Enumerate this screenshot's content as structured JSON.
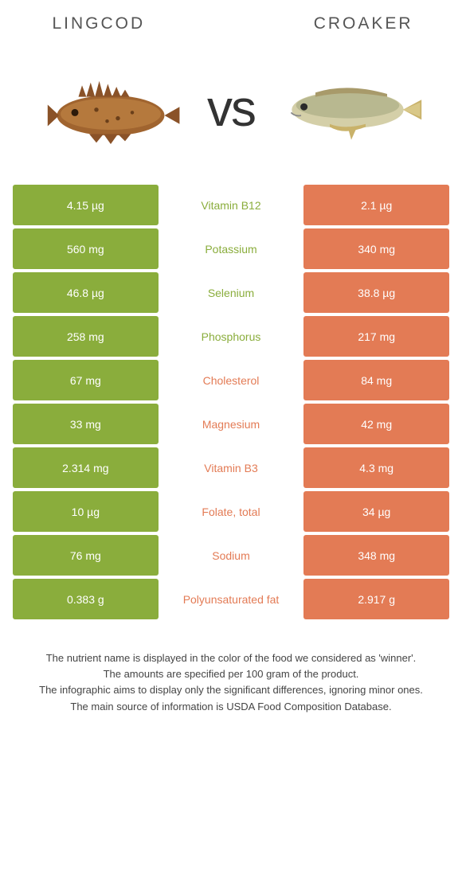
{
  "left_food": {
    "title": "LINGCOD"
  },
  "right_food": {
    "title": "CROAKER"
  },
  "vs_text": "vs",
  "colors": {
    "left": "#8aad3c",
    "right": "#e37b55",
    "left_text": "#8aad3c",
    "right_text": "#e37b55"
  },
  "rows": [
    {
      "left": "4.15 µg",
      "label": "Vitamin B12",
      "right": "2.1 µg",
      "winner": "left"
    },
    {
      "left": "560 mg",
      "label": "Potassium",
      "right": "340 mg",
      "winner": "left"
    },
    {
      "left": "46.8 µg",
      "label": "Selenium",
      "right": "38.8 µg",
      "winner": "left"
    },
    {
      "left": "258 mg",
      "label": "Phosphorus",
      "right": "217 mg",
      "winner": "left"
    },
    {
      "left": "67 mg",
      "label": "Cholesterol",
      "right": "84 mg",
      "winner": "right"
    },
    {
      "left": "33 mg",
      "label": "Magnesium",
      "right": "42 mg",
      "winner": "right"
    },
    {
      "left": "2.314 mg",
      "label": "Vitamin B3",
      "right": "4.3 mg",
      "winner": "right"
    },
    {
      "left": "10 µg",
      "label": "Folate, total",
      "right": "34 µg",
      "winner": "right"
    },
    {
      "left": "76 mg",
      "label": "Sodium",
      "right": "348 mg",
      "winner": "right"
    },
    {
      "left": "0.383 g",
      "label": "Polyunsaturated fat",
      "right": "2.917 g",
      "winner": "right"
    }
  ],
  "footer": [
    "The nutrient name is displayed in the color of the food we considered as 'winner'.",
    "The amounts are specified per 100 gram of the product.",
    "The infographic aims to display only the significant differences, ignoring minor ones.",
    "The main source of information is USDA Food Composition Database."
  ]
}
